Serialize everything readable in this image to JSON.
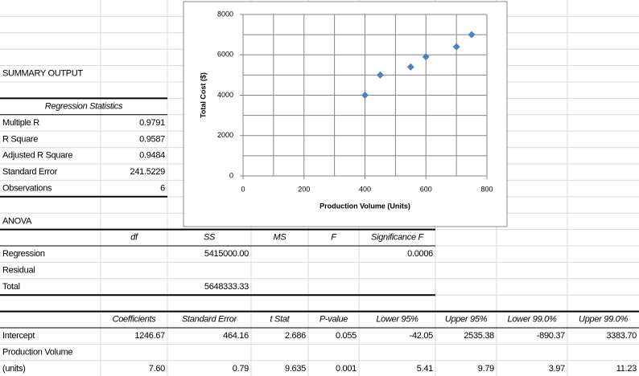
{
  "sheet": {
    "title": "SUMMARY OUTPUT",
    "regression_statistics": {
      "header": "Regression Statistics",
      "rows": [
        [
          "Multiple R",
          "0.9791"
        ],
        [
          "R Square",
          "0.9587"
        ],
        [
          "Adjusted R Square",
          "0.9484"
        ],
        [
          "Standard Error",
          "241.5229"
        ],
        [
          "Observations",
          "6"
        ]
      ]
    },
    "anova": {
      "title": "ANOVA",
      "header": [
        "df",
        "SS",
        "MS",
        "F",
        "Significance F"
      ],
      "rows": [
        [
          "Regression",
          null,
          "5415000.00",
          null,
          null,
          "0.0006"
        ],
        [
          "Residual",
          null,
          null,
          null,
          null,
          null
        ],
        [
          "Total",
          null,
          "5648333.33",
          null,
          null,
          null
        ]
      ]
    },
    "coefficients": {
      "header": [
        "Coefficients",
        "Standard Error",
        "t Stat",
        "P-value",
        "Lower 95%",
        "Upper 95%",
        "Lower 99.0%",
        "Upper 99.0%"
      ],
      "rows": [
        {
          "label": [
            "Intercept"
          ],
          "values": [
            "1246.67",
            "464.16",
            "2.686",
            "0.055",
            "-42.05",
            "2535.38",
            "-890.37",
            "3383.70"
          ]
        },
        {
          "label": [
            "Production Volume",
            "(units)"
          ],
          "values": [
            "7.60",
            "0.79",
            "9.635",
            "0.001",
            "5.41",
            "9.79",
            "3.97",
            "11.23"
          ]
        }
      ]
    }
  },
  "chart_data": {
    "type": "scatter",
    "x_label": "Production Volume (Units)",
    "y_label": "Total Cost ($)",
    "color": "#4f81bd",
    "x": [
      400,
      450,
      550,
      600,
      700,
      750
    ],
    "values": [
      4000,
      5000,
      5400,
      5900,
      6400,
      7000
    ],
    "xlim": [
      0,
      800
    ],
    "ylim": [
      0,
      8000
    ],
    "xticks": [
      0,
      200,
      400,
      600,
      800
    ],
    "yticks": [
      0,
      2000,
      4000,
      6000,
      8000
    ],
    "xgrid": [
      0,
      100,
      200,
      300,
      400,
      500,
      600,
      700,
      800
    ],
    "ygrid": [
      0,
      1000,
      2000,
      3000,
      4000,
      5000,
      6000,
      7000,
      8000
    ]
  }
}
